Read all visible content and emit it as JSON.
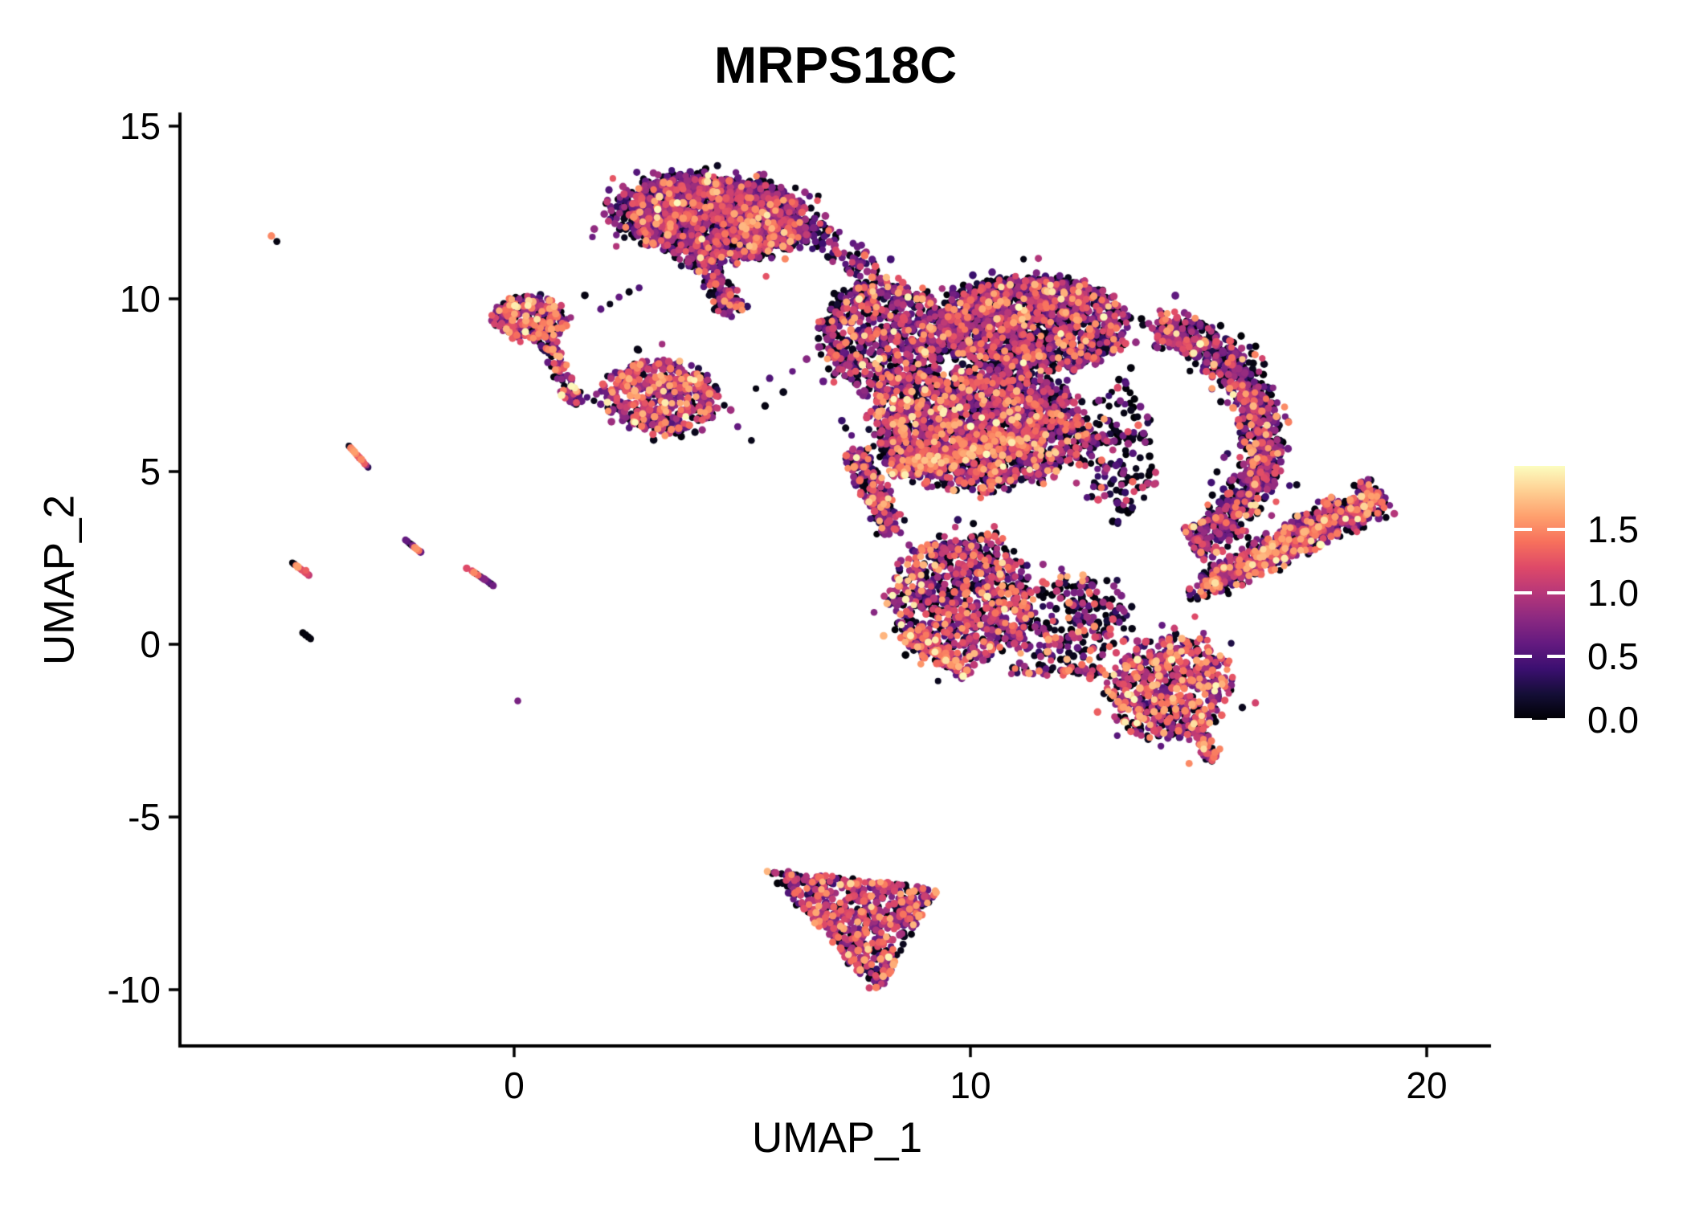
{
  "title": "MRPS18C",
  "axes": {
    "x": {
      "label": "UMAP_1",
      "ticks": [
        {
          "value": 0,
          "label": "0"
        },
        {
          "value": 10,
          "label": "10"
        },
        {
          "value": 20,
          "label": "20"
        }
      ]
    },
    "y": {
      "label": "UMAP_2",
      "ticks": [
        {
          "value": 15,
          "label": "15"
        },
        {
          "value": 10,
          "label": "10"
        },
        {
          "value": 5,
          "label": "5"
        },
        {
          "value": 0,
          "label": "0"
        },
        {
          "value": -5,
          "label": "-5"
        },
        {
          "value": -10,
          "label": "-10"
        }
      ]
    }
  },
  "legend": {
    "min": 0.0,
    "max": 2.0,
    "ticks": [
      {
        "value": 1.5,
        "label": "1.5"
      },
      {
        "value": 1.0,
        "label": "1.0"
      },
      {
        "value": 0.5,
        "label": "0.5"
      },
      {
        "value": 0.0,
        "label": "0.0"
      }
    ]
  },
  "chart_data": {
    "type": "scatter",
    "title": "MRPS18C",
    "xlabel": "UMAP_1",
    "ylabel": "UMAP_2",
    "xlim": [
      -7.3,
      21.4
    ],
    "ylim": [
      -11.6,
      15.4
    ],
    "grid": false,
    "legend_position": "right",
    "point_radius_px": 4.2,
    "colormap": {
      "name": "magma",
      "domain": [
        0,
        2
      ],
      "stops": [
        "#000004",
        "#140e36",
        "#3b0f70",
        "#641a80",
        "#8c2981",
        "#b73779",
        "#de4968",
        "#f7705c",
        "#fe9f6d",
        "#fecf92",
        "#fcfdbf"
      ]
    },
    "value_bins": [
      [
        0.0,
        0.12
      ],
      [
        0.18,
        0.45
      ],
      [
        0.5,
        0.9
      ],
      [
        0.9,
        1.3
      ],
      [
        1.3,
        1.7
      ],
      [
        1.7,
        2.0
      ]
    ],
    "clusters": [
      {
        "name": "top-core",
        "shape": "ellipse",
        "cx": 4.35,
        "cy": 12.35,
        "rx": 2.05,
        "ry": 1.12,
        "rot": -8,
        "n": 1600,
        "mix": [
          0.3,
          0.1,
          0.35,
          0.18,
          0.06,
          0.01
        ]
      },
      {
        "name": "top-fringe",
        "shape": "ellipse",
        "cx": 4.3,
        "cy": 12.3,
        "rx": 2.35,
        "ry": 1.45,
        "rot": -8,
        "n": 220,
        "mix": [
          0.42,
          0.1,
          0.32,
          0.12,
          0.04,
          0.0
        ]
      },
      {
        "name": "top-black-edge",
        "shape": "ellipse",
        "cx": 4.6,
        "cy": 13.15,
        "rx": 1.5,
        "ry": 0.38,
        "rot": -5,
        "n": 150,
        "mix": [
          0.55,
          0.12,
          0.25,
          0.06,
          0.02,
          0.0
        ]
      },
      {
        "name": "top-tail",
        "shape": "band",
        "x1": 4.05,
        "y1": 11.3,
        "x2": 4.85,
        "y2": 9.55,
        "w": 0.8,
        "n": 170,
        "mix": [
          0.35,
          0.1,
          0.33,
          0.16,
          0.06,
          0.0
        ]
      },
      {
        "name": "top-to-main-bridge",
        "shape": "band",
        "x1": 5.9,
        "y1": 12.6,
        "x2": 7.95,
        "y2": 10.6,
        "w": 0.95,
        "n": 110,
        "mix": [
          0.45,
          0.1,
          0.32,
          0.1,
          0.03,
          0.0
        ]
      },
      {
        "name": "left-blob",
        "shape": "ellipse",
        "cx": 0.35,
        "cy": 9.45,
        "rx": 0.82,
        "ry": 0.62,
        "rot": 0,
        "n": 270,
        "mix": [
          0.25,
          0.05,
          0.3,
          0.24,
          0.14,
          0.02
        ]
      },
      {
        "name": "left-blob-tail",
        "shape": "band",
        "x1": 0.72,
        "y1": 8.85,
        "x2": 1.32,
        "y2": 6.95,
        "w": 0.55,
        "n": 85,
        "mix": [
          0.3,
          0.07,
          0.3,
          0.2,
          0.11,
          0.02
        ]
      },
      {
        "name": "mid-blob",
        "shape": "ellipse",
        "cx": 3.25,
        "cy": 7.15,
        "rx": 1.28,
        "ry": 1.05,
        "rot": -15,
        "n": 540,
        "mix": [
          0.25,
          0.05,
          0.3,
          0.24,
          0.14,
          0.02
        ]
      },
      {
        "name": "main-upper-left",
        "shape": "ellipse",
        "cx": 8.1,
        "cy": 8.9,
        "rx": 1.35,
        "ry": 1.6,
        "rot": 0,
        "n": 800,
        "mix": [
          0.33,
          0.08,
          0.3,
          0.19,
          0.09,
          0.01
        ]
      },
      {
        "name": "main-upper-right",
        "shape": "ellipse",
        "cx": 11.35,
        "cy": 9.2,
        "rx": 2.05,
        "ry": 1.35,
        "rot": 4,
        "n": 1500,
        "mix": [
          0.36,
          0.08,
          0.29,
          0.18,
          0.08,
          0.01
        ]
      },
      {
        "name": "main-top-black",
        "shape": "ellipse",
        "cx": 11.2,
        "cy": 10.15,
        "rx": 1.65,
        "ry": 0.5,
        "rot": 0,
        "n": 240,
        "mix": [
          0.55,
          0.1,
          0.25,
          0.08,
          0.02,
          0.0
        ]
      },
      {
        "name": "main-center",
        "shape": "ellipse",
        "cx": 10.2,
        "cy": 6.2,
        "rx": 2.35,
        "ry": 1.7,
        "rot": 0,
        "n": 1900,
        "mix": [
          0.31,
          0.07,
          0.28,
          0.22,
          0.1,
          0.02
        ]
      },
      {
        "name": "main-pink-band",
        "shape": "band",
        "x1": 8.2,
        "y1": 5.0,
        "x2": 11.3,
        "y2": 6.1,
        "w": 0.85,
        "n": 260,
        "mix": [
          0.12,
          0.04,
          0.22,
          0.33,
          0.26,
          0.03
        ]
      },
      {
        "name": "main-left-spur",
        "shape": "band",
        "x1": 7.45,
        "y1": 5.6,
        "x2": 8.3,
        "y2": 3.2,
        "w": 0.8,
        "n": 210,
        "mix": [
          0.33,
          0.08,
          0.3,
          0.19,
          0.09,
          0.01
        ]
      },
      {
        "name": "main-bottom-lobe",
        "shape": "ellipse",
        "cx": 9.8,
        "cy": 1.3,
        "rx": 1.55,
        "ry": 1.9,
        "rot": 0,
        "n": 880,
        "mix": [
          0.28,
          0.07,
          0.28,
          0.23,
          0.12,
          0.02
        ]
      },
      {
        "name": "bottom-pink-edge",
        "shape": "band",
        "x1": 8.6,
        "y1": 0.35,
        "x2": 9.9,
        "y2": -0.9,
        "w": 0.5,
        "n": 110,
        "mix": [
          0.15,
          0.05,
          0.25,
          0.3,
          0.22,
          0.03
        ]
      },
      {
        "name": "main-right-lower",
        "shape": "ellipse",
        "cx": 12.15,
        "cy": 0.7,
        "rx": 1.3,
        "ry": 1.35,
        "rot": 0,
        "n": 250,
        "mix": [
          0.4,
          0.08,
          0.27,
          0.17,
          0.08,
          0.0
        ]
      },
      {
        "name": "bridge-bottom-right",
        "shape": "band",
        "x1": 10.9,
        "y1": -0.7,
        "x2": 13.1,
        "y2": -0.85,
        "w": 0.35,
        "n": 60,
        "mix": [
          0.45,
          0.05,
          0.25,
          0.15,
          0.1,
          0.0
        ]
      },
      {
        "name": "neck-scatter",
        "shape": "ellipse",
        "cx": 13.25,
        "cy": 5.5,
        "rx": 0.8,
        "ry": 2.0,
        "rot": 0,
        "n": 170,
        "mix": [
          0.52,
          0.1,
          0.25,
          0.09,
          0.04,
          0.0
        ]
      },
      {
        "name": "crescent",
        "shape": "arc",
        "cx": 13.7,
        "cy": 5.9,
        "rx": 2.7,
        "ry": 3.3,
        "a1": 82,
        "a2": -65,
        "w": 1.15,
        "n": 950,
        "mix": [
          0.3,
          0.1,
          0.35,
          0.18,
          0.06,
          0.01
        ]
      },
      {
        "name": "crescent-fringe",
        "shape": "arc",
        "cx": 13.7,
        "cy": 5.9,
        "rx": 2.7,
        "ry": 3.3,
        "a1": 82,
        "a2": -65,
        "w": 2.1,
        "n": 170,
        "mix": [
          0.5,
          0.1,
          0.28,
          0.08,
          0.04,
          0.0
        ]
      },
      {
        "name": "wing",
        "shape": "band",
        "x1": 15.15,
        "y1": 1.7,
        "x2": 19.05,
        "y2": 4.3,
        "w": 0.85,
        "w2": 1.45,
        "bias": 0.8,
        "n": 800,
        "mix": [
          0.26,
          0.06,
          0.3,
          0.22,
          0.14,
          0.02
        ]
      },
      {
        "name": "wing-tip",
        "shape": "band",
        "x1": 14.85,
        "y1": 1.35,
        "x2": 15.7,
        "y2": 2.05,
        "w": 0.5,
        "n": 45,
        "mix": [
          0.45,
          0.1,
          0.25,
          0.12,
          0.08,
          0.0
        ]
      },
      {
        "name": "bottom-right-blob",
        "shape": "ellipse",
        "cx": 14.35,
        "cy": -1.3,
        "rx": 1.28,
        "ry": 1.52,
        "rot": -20,
        "n": 640,
        "mix": [
          0.22,
          0.05,
          0.28,
          0.26,
          0.17,
          0.02
        ]
      },
      {
        "name": "bottom-right-tail",
        "shape": "band",
        "x1": 14.9,
        "y1": -2.5,
        "x2": 15.35,
        "y2": -3.35,
        "w": 0.42,
        "n": 55,
        "mix": [
          0.22,
          0.05,
          0.28,
          0.26,
          0.17,
          0.02
        ]
      },
      {
        "name": "bottom-triangle",
        "shape": "polygon",
        "pts": [
          [
            5.55,
            -6.55
          ],
          [
            9.3,
            -7.05
          ],
          [
            7.95,
            -10.15
          ]
        ],
        "n": 620,
        "mix": [
          0.22,
          0.05,
          0.3,
          0.26,
          0.15,
          0.02
        ]
      }
    ],
    "points": [
      [
        -5.32,
        11.82,
        1.5
      ],
      [
        -5.2,
        11.66,
        0.05
      ],
      [
        -3.62,
        5.74,
        0.1
      ],
      [
        -3.58,
        5.68,
        1.45
      ],
      [
        -3.54,
        5.63,
        1.55
      ],
      [
        -3.5,
        5.57,
        1.6
      ],
      [
        -3.47,
        5.51,
        1.5
      ],
      [
        -3.43,
        5.46,
        1.3
      ],
      [
        -3.39,
        5.4,
        1.2
      ],
      [
        -3.35,
        5.35,
        1.5
      ],
      [
        -3.31,
        5.29,
        1.15
      ],
      [
        -3.28,
        5.23,
        1.3
      ],
      [
        -3.24,
        5.18,
        0.9
      ],
      [
        -3.2,
        5.12,
        0.3
      ],
      [
        -2.38,
        3.02,
        0.6
      ],
      [
        -2.34,
        2.98,
        0.55
      ],
      [
        -2.3,
        2.93,
        0.08
      ],
      [
        -2.26,
        2.89,
        0.05
      ],
      [
        -2.22,
        2.85,
        0.7
      ],
      [
        -2.18,
        2.8,
        1.5
      ],
      [
        -2.14,
        2.76,
        1.55
      ],
      [
        -2.09,
        2.71,
        1.4
      ],
      [
        -2.05,
        2.67,
        0.6
      ],
      [
        -4.86,
        2.36,
        0.02
      ],
      [
        -4.82,
        2.32,
        0.05
      ],
      [
        -4.78,
        2.28,
        1.5
      ],
      [
        -4.74,
        2.24,
        1.6
      ],
      [
        -4.7,
        2.2,
        1.2
      ],
      [
        -4.66,
        2.16,
        1.15
      ],
      [
        -4.62,
        2.12,
        1.25
      ],
      [
        -4.58,
        2.08,
        1.1
      ],
      [
        -4.54,
        2.04,
        1.2
      ],
      [
        -4.5,
        2.0,
        1.05
      ],
      [
        -4.56,
        2.14,
        1.3
      ],
      [
        -1.04,
        2.2,
        1.2
      ],
      [
        -0.92,
        2.12,
        1.2
      ],
      [
        -0.88,
        2.08,
        1.5
      ],
      [
        -0.83,
        2.04,
        0.05
      ],
      [
        -0.79,
        2.0,
        1.35
      ],
      [
        -0.74,
        1.96,
        0.1
      ],
      [
        -0.7,
        1.92,
        0.7
      ],
      [
        -0.65,
        1.88,
        0.75
      ],
      [
        -0.6,
        1.84,
        0.6
      ],
      [
        -0.56,
        1.8,
        0.55
      ],
      [
        -0.51,
        1.75,
        0.1
      ],
      [
        -0.46,
        1.7,
        0.65
      ],
      [
        -4.63,
        0.33,
        0.02
      ],
      [
        -4.57,
        0.27,
        0.03
      ],
      [
        -4.51,
        0.21,
        0.02
      ],
      [
        -4.46,
        0.16,
        0.04
      ],
      [
        0.08,
        -1.64,
        0.7
      ],
      [
        2.3,
        10.05,
        0.6
      ],
      [
        2.52,
        10.2,
        0.05
      ],
      [
        2.74,
        10.32,
        0.5
      ],
      [
        2.1,
        9.85,
        0.08
      ],
      [
        1.9,
        9.7,
        0.55
      ],
      [
        1.55,
        10.1,
        0.05
      ],
      [
        1.45,
        7.3,
        0.05
      ],
      [
        1.6,
        7.15,
        0.5
      ],
      [
        1.75,
        7.05,
        0.08
      ],
      [
        1.9,
        6.95,
        0.6
      ],
      [
        2.05,
        6.85,
        0.1
      ],
      [
        5.3,
        7.4,
        0.05
      ],
      [
        5.6,
        7.7,
        0.5
      ],
      [
        5.9,
        7.3,
        0.08
      ],
      [
        6.1,
        7.9,
        0.6
      ],
      [
        5.5,
        6.9,
        0.05
      ],
      [
        4.9,
        6.3,
        0.6
      ],
      [
        5.2,
        5.9,
        0.08
      ],
      [
        14.92,
        0.8,
        1.2
      ],
      [
        14.5,
        0.3,
        0.1
      ],
      [
        14.2,
        0.55,
        0.6
      ]
    ]
  }
}
